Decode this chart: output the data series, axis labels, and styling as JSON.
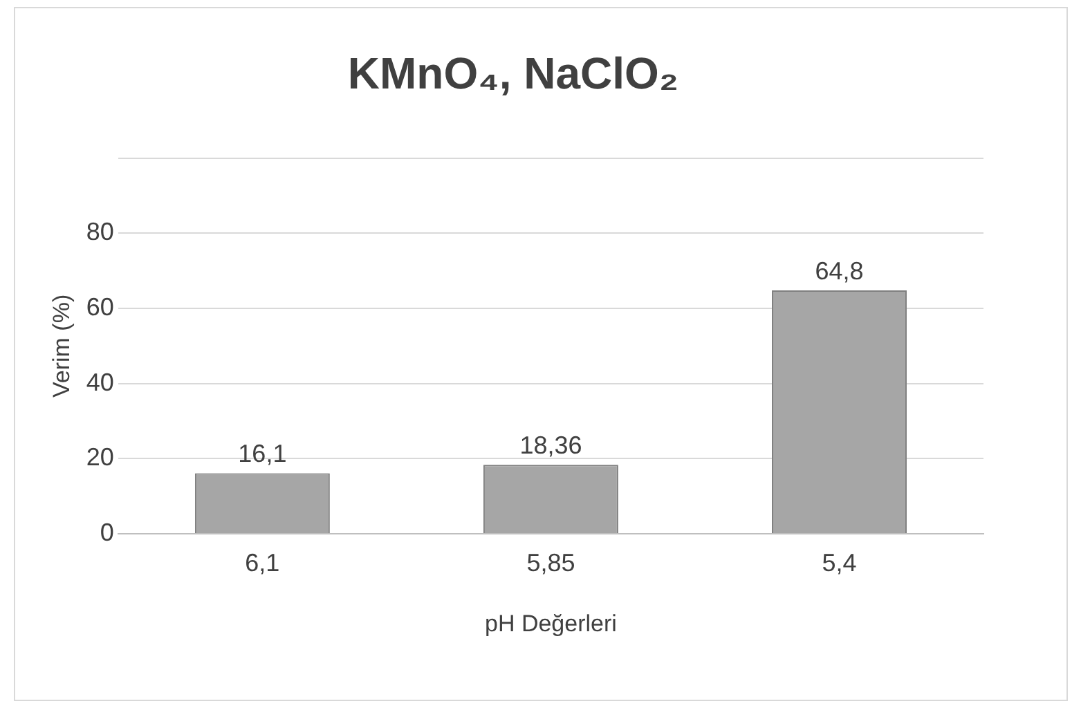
{
  "chart_data": {
    "type": "bar",
    "title": "KMnO₄, NaClO₂",
    "xlabel": "pH Değerleri",
    "ylabel": "Verim (%)",
    "categories": [
      "6,1",
      "5,85",
      "5,4"
    ],
    "values": [
      16.1,
      18.36,
      64.8
    ],
    "value_labels": [
      "16,1",
      "18,36",
      "64,8"
    ],
    "color": "#a6a6a6",
    "ylim": [
      0,
      100
    ],
    "yticks": [
      0,
      20,
      40,
      60,
      80,
      {
        "value": 100,
        "label": null
      }
    ],
    "grid": "y",
    "legend": false
  }
}
